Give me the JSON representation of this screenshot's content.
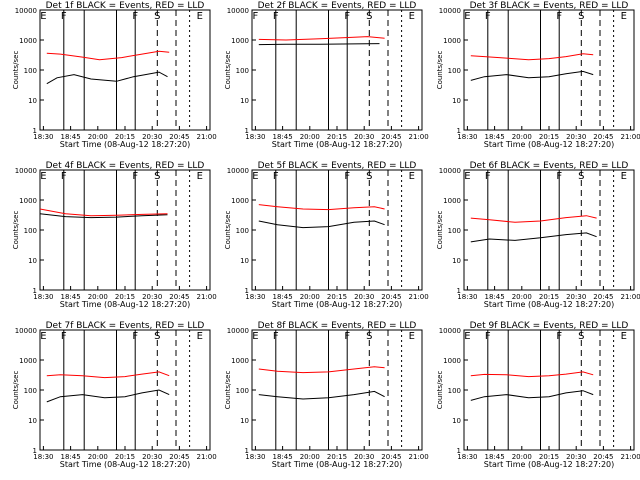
{
  "figure": {
    "xlabel": "Start Time (08-Aug-12 18:27:20)",
    "ylabel": "Counts/sec"
  },
  "colors": {
    "events": "#000000",
    "lld": "#ff0000",
    "frame": "#000000"
  },
  "chart_data": [
    {
      "type": "line",
      "title": "Det 1f BLACK = Events, RED = LLD",
      "x_ticks": [
        "18:30",
        "18:45",
        "20:00",
        "20:15",
        "20:30",
        "20:45",
        "21:00"
      ],
      "y_ticks": [
        "1",
        "10",
        "100",
        "1000",
        "10000"
      ],
      "ylim": [
        1,
        10000
      ],
      "log_y": true,
      "markers": [
        "E",
        "F",
        "F",
        "S",
        "E"
      ],
      "series": [
        {
          "values": [
            [
              0.04,
              35
            ],
            [
              0.1,
              55
            ],
            [
              0.2,
              70
            ],
            [
              0.3,
              50
            ],
            [
              0.45,
              42
            ],
            [
              0.55,
              60
            ],
            [
              0.62,
              70
            ],
            [
              0.7,
              85
            ],
            [
              0.75,
              60
            ]
          ]
        },
        {
          "values": [
            [
              0.04,
              360
            ],
            [
              0.12,
              340
            ],
            [
              0.25,
              270
            ],
            [
              0.35,
              220
            ],
            [
              0.48,
              260
            ],
            [
              0.6,
              340
            ],
            [
              0.7,
              420
            ],
            [
              0.76,
              390
            ]
          ]
        }
      ]
    },
    {
      "type": "line",
      "title": "Det 2f BLACK = Events, RED = LLD",
      "x_ticks": [
        "18:30",
        "18:45",
        "20:00",
        "20:15",
        "20:30",
        "20:45",
        "21:00"
      ],
      "y_ticks": [
        "1",
        "10",
        "100",
        "1000",
        "10000"
      ],
      "ylim": [
        1,
        10000
      ],
      "log_y": true,
      "markers": [
        "F",
        "F",
        "F",
        "S",
        "E"
      ],
      "series": [
        {
          "values": [
            [
              0.04,
              700
            ],
            [
              0.2,
              720
            ],
            [
              0.4,
              720
            ],
            [
              0.6,
              740
            ],
            [
              0.75,
              760
            ]
          ]
        },
        {
          "values": [
            [
              0.04,
              1050
            ],
            [
              0.2,
              1000
            ],
            [
              0.4,
              1100
            ],
            [
              0.55,
              1200
            ],
            [
              0.68,
              1300
            ],
            [
              0.78,
              1150
            ]
          ]
        }
      ]
    },
    {
      "type": "line",
      "title": "Det 3f BLACK = Events, RED = LLD",
      "x_ticks": [
        "18:30",
        "18:45",
        "20:00",
        "20:15",
        "20:30",
        "20:45",
        "21:00"
      ],
      "y_ticks": [
        "1",
        "10",
        "100",
        "1000",
        "10000"
      ],
      "ylim": [
        1,
        10000
      ],
      "log_y": true,
      "markers": [
        "E",
        "F",
        "F",
        "S",
        "E"
      ],
      "series": [
        {
          "values": [
            [
              0.04,
              45
            ],
            [
              0.12,
              60
            ],
            [
              0.25,
              70
            ],
            [
              0.38,
              55
            ],
            [
              0.5,
              60
            ],
            [
              0.6,
              75
            ],
            [
              0.7,
              90
            ],
            [
              0.76,
              70
            ]
          ]
        },
        {
          "values": [
            [
              0.04,
              300
            ],
            [
              0.12,
              280
            ],
            [
              0.25,
              250
            ],
            [
              0.38,
              220
            ],
            [
              0.5,
              240
            ],
            [
              0.6,
              280
            ],
            [
              0.7,
              350
            ],
            [
              0.76,
              320
            ]
          ]
        }
      ]
    },
    {
      "type": "line",
      "title": "Det 4f BLACK = Events, RED = LLD",
      "x_ticks": [
        "18:30",
        "18:45",
        "20:00",
        "20:15",
        "20:30",
        "20:45",
        "21:00"
      ],
      "y_ticks": [
        "1",
        "10",
        "100",
        "1000",
        "10000"
      ],
      "ylim": [
        1,
        10000
      ],
      "log_y": true,
      "markers": [
        "E",
        "F",
        "F",
        "S",
        "E"
      ],
      "series": [
        {
          "values": [
            [
              0.0,
              350
            ],
            [
              0.15,
              280
            ],
            [
              0.3,
              260
            ],
            [
              0.45,
              270
            ],
            [
              0.6,
              300
            ],
            [
              0.75,
              320
            ]
          ]
        },
        {
          "values": [
            [
              0.0,
              500
            ],
            [
              0.15,
              350
            ],
            [
              0.3,
              300
            ],
            [
              0.45,
              310
            ],
            [
              0.6,
              330
            ],
            [
              0.75,
              350
            ]
          ]
        }
      ]
    },
    {
      "type": "line",
      "title": "Det 5f BLACK = Events, RED = LLD",
      "x_ticks": [
        "18:30",
        "18:45",
        "20:00",
        "20:15",
        "20:30",
        "20:45",
        "21:00"
      ],
      "y_ticks": [
        "1",
        "10",
        "100",
        "1000",
        "10000"
      ],
      "ylim": [
        1,
        10000
      ],
      "log_y": true,
      "markers": [
        "E",
        "F",
        "F",
        "S",
        "E"
      ],
      "series": [
        {
          "values": [
            [
              0.04,
              200
            ],
            [
              0.15,
              150
            ],
            [
              0.3,
              120
            ],
            [
              0.45,
              130
            ],
            [
              0.6,
              180
            ],
            [
              0.72,
              200
            ],
            [
              0.78,
              150
            ]
          ]
        },
        {
          "values": [
            [
              0.04,
              700
            ],
            [
              0.15,
              600
            ],
            [
              0.3,
              500
            ],
            [
              0.45,
              480
            ],
            [
              0.6,
              550
            ],
            [
              0.72,
              600
            ],
            [
              0.78,
              500
            ]
          ]
        }
      ]
    },
    {
      "type": "line",
      "title": "Det 6f BLACK = Events, RED = LLD",
      "x_ticks": [
        "18:30",
        "18:45",
        "20:00",
        "20:15",
        "20:30",
        "20:45",
        "21:00"
      ],
      "y_ticks": [
        "1",
        "10",
        "100",
        "1000",
        "10000"
      ],
      "ylim": [
        1,
        10000
      ],
      "log_y": true,
      "markers": [
        "E",
        "F",
        "F",
        "S",
        "E"
      ],
      "series": [
        {
          "values": [
            [
              0.04,
              40
            ],
            [
              0.15,
              50
            ],
            [
              0.3,
              45
            ],
            [
              0.45,
              55
            ],
            [
              0.6,
              70
            ],
            [
              0.72,
              80
            ],
            [
              0.78,
              60
            ]
          ]
        },
        {
          "values": [
            [
              0.04,
              250
            ],
            [
              0.15,
              220
            ],
            [
              0.3,
              180
            ],
            [
              0.45,
              200
            ],
            [
              0.6,
              260
            ],
            [
              0.72,
              300
            ],
            [
              0.78,
              250
            ]
          ]
        }
      ]
    },
    {
      "type": "line",
      "title": "Det 7f BLACK = Events, RED = LLD",
      "x_ticks": [
        "18:30",
        "18:45",
        "20:00",
        "20:15",
        "20:30",
        "20:45",
        "21:00"
      ],
      "y_ticks": [
        "1",
        "10",
        "100",
        "1000",
        "10000"
      ],
      "ylim": [
        1,
        10000
      ],
      "log_y": true,
      "markers": [
        "E",
        "F",
        "F",
        "S",
        "E"
      ],
      "series": [
        {
          "values": [
            [
              0.04,
              40
            ],
            [
              0.12,
              60
            ],
            [
              0.25,
              70
            ],
            [
              0.38,
              55
            ],
            [
              0.5,
              60
            ],
            [
              0.6,
              80
            ],
            [
              0.7,
              100
            ],
            [
              0.76,
              70
            ]
          ]
        },
        {
          "values": [
            [
              0.04,
              300
            ],
            [
              0.12,
              320
            ],
            [
              0.25,
              300
            ],
            [
              0.38,
              260
            ],
            [
              0.5,
              280
            ],
            [
              0.6,
              340
            ],
            [
              0.7,
              400
            ],
            [
              0.76,
              300
            ]
          ]
        }
      ]
    },
    {
      "type": "line",
      "title": "Det 8f BLACK = Events, RED = LLD",
      "x_ticks": [
        "18:30",
        "18:45",
        "20:00",
        "20:15",
        "20:30",
        "20:45",
        "21:00"
      ],
      "y_ticks": [
        "1",
        "10",
        "100",
        "1000",
        "10000"
      ],
      "ylim": [
        1,
        10000
      ],
      "log_y": true,
      "markers": [
        "E",
        "F",
        "F",
        "S",
        "E"
      ],
      "series": [
        {
          "values": [
            [
              0.04,
              70
            ],
            [
              0.15,
              60
            ],
            [
              0.3,
              50
            ],
            [
              0.45,
              55
            ],
            [
              0.6,
              70
            ],
            [
              0.72,
              90
            ],
            [
              0.78,
              60
            ]
          ]
        },
        {
          "values": [
            [
              0.04,
              500
            ],
            [
              0.15,
              420
            ],
            [
              0.3,
              380
            ],
            [
              0.45,
              400
            ],
            [
              0.6,
              500
            ],
            [
              0.72,
              600
            ],
            [
              0.78,
              550
            ]
          ]
        }
      ]
    },
    {
      "type": "line",
      "title": "Det 9f BLACK = Events, RED = LLD",
      "x_ticks": [
        "18:30",
        "18:45",
        "20:00",
        "20:15",
        "20:30",
        "20:45",
        "21:00"
      ],
      "y_ticks": [
        "1",
        "10",
        "100",
        "1000",
        "10000"
      ],
      "ylim": [
        1,
        10000
      ],
      "log_y": true,
      "markers": [
        "E",
        "F",
        "F",
        "S",
        "E"
      ],
      "series": [
        {
          "values": [
            [
              0.04,
              45
            ],
            [
              0.12,
              60
            ],
            [
              0.25,
              70
            ],
            [
              0.38,
              55
            ],
            [
              0.5,
              60
            ],
            [
              0.6,
              80
            ],
            [
              0.7,
              95
            ],
            [
              0.76,
              70
            ]
          ]
        },
        {
          "values": [
            [
              0.04,
              300
            ],
            [
              0.12,
              330
            ],
            [
              0.25,
              320
            ],
            [
              0.38,
              280
            ],
            [
              0.5,
              300
            ],
            [
              0.6,
              340
            ],
            [
              0.7,
              400
            ],
            [
              0.76,
              320
            ]
          ]
        }
      ]
    }
  ]
}
